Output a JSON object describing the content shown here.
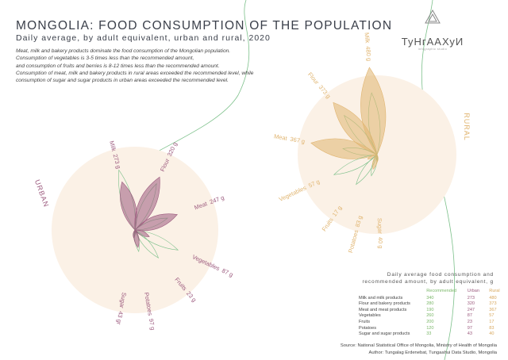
{
  "header": {
    "title": "MONGOLIA: FOOD CONSUMPTION OF THE POPULATION",
    "subtitle": "Daily average, by adult equivalent, urban and rural, 2020",
    "description": [
      "Meat, milk and bakery products dominate the food consumption of the Mongolian population.",
      "Consumption of vegetables is 3-5 times less than the recommended amount,",
      "and consumption of fruits and berries is 8-12 times less than the recommended amount.",
      "Consumption of meat, milk and bakery products in rural areas exceeded the recommended level, while",
      "consumption of sugar and sugar products in urban areas exceeded the recommended level."
    ]
  },
  "logo": {
    "name": "ТуНгААХуИ",
    "tagline": "infographic studio"
  },
  "colors": {
    "urban": "#9c5a7e",
    "rural": "#e0b46f",
    "recommended": "#7cc08a",
    "circle": "#fbf1e6"
  },
  "chart_data": {
    "type": "radial-petal",
    "title": "Daily average food consumption and recommended amount, by adult equivalent, g",
    "categories": [
      "Milk and milk products",
      "Flour and bakery products",
      "Meat and meat products",
      "Vegetables",
      "Fruits",
      "Potatoes",
      "Sugar and sugar products"
    ],
    "short": [
      "Milk",
      "Flour",
      "Meat",
      "Vegetables",
      "Fruits",
      "Potatoes",
      "Sugar"
    ],
    "series": [
      {
        "name": "Recommended",
        "values": [
          340,
          280,
          190,
          260,
          200,
          120,
          33
        ]
      },
      {
        "name": "Urban",
        "label": "URBAN",
        "unit_labels": [
          "273 g",
          "320 g",
          "247 g",
          "87 g",
          "23 g",
          "97 g",
          "43 gr"
        ],
        "values": [
          273,
          320,
          247,
          87,
          23,
          97,
          43
        ]
      },
      {
        "name": "Rural",
        "label": "RURAL",
        "unit_labels": [
          "480 g",
          "373 g",
          "367 g",
          "57 g",
          "17 g",
          "83 g",
          "40 g"
        ],
        "values": [
          480,
          373,
          367,
          57,
          17,
          83,
          40
        ]
      }
    ]
  },
  "table": {
    "heading1": "Daily average food consumption and",
    "heading2": "recommended amount, by adult equivalent, g",
    "columns": [
      "",
      "Recommended",
      "Urban",
      "Rural"
    ],
    "rows": [
      [
        "Milk and milk products",
        "340",
        "273",
        "480"
      ],
      [
        "Flour and bakery products",
        "280",
        "320",
        "373"
      ],
      [
        "Meat and meat products",
        "190",
        "247",
        "367"
      ],
      [
        "Vegetables",
        "260",
        "87",
        "57"
      ],
      [
        "Fruits",
        "200",
        "23",
        "17"
      ],
      [
        "Potatoes",
        "120",
        "97",
        "83"
      ],
      [
        "Sugar and sugar products",
        "33",
        "43",
        "40"
      ]
    ]
  },
  "footer": {
    "source": "Source: National Statistical Office of Mongolia, Ministry of Health of Mongolia",
    "author": "Author: Tungalag Erdenebat, Tungaahui Data Studio, Mongolia"
  }
}
